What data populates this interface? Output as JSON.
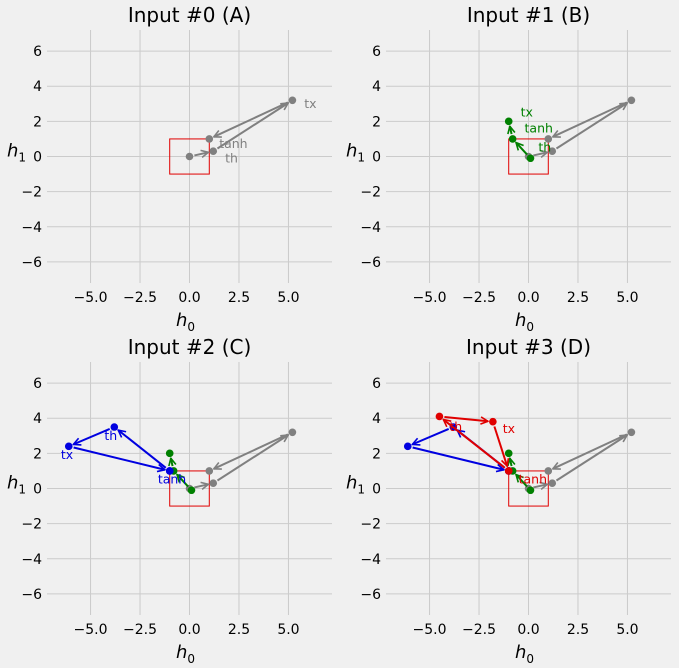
{
  "chart_data": [
    {
      "type": "line",
      "title": "Input #0 (A)",
      "xlabel": "h",
      "xlabel_sub": "0",
      "ylabel": "h",
      "ylabel_sub": "1",
      "xlim": [
        -7.2,
        7.2
      ],
      "ylim": [
        -7.2,
        7.2
      ],
      "xticks": [
        -5.0,
        -2.5,
        0.0,
        2.5,
        5.0
      ],
      "xtick_labels": [
        "−5.0",
        "−2.5",
        "0.0",
        "2.5",
        "5.0"
      ],
      "yticks": [
        -6,
        -4,
        -2,
        0,
        2,
        4,
        6
      ],
      "ytick_labels": [
        "−6",
        "−4",
        "−2",
        "0",
        "2",
        "4",
        "6"
      ],
      "grid": true,
      "box": {
        "x": [
          -1,
          1
        ],
        "y": [
          -1,
          1
        ],
        "color": "#e00000"
      },
      "series": [
        {
          "color": "#808080",
          "points": [
            [
              0,
              0
            ],
            [
              1.2,
              0.3
            ],
            [
              5.2,
              3.2
            ],
            [
              1.0,
              1.0
            ]
          ],
          "labels": [
            {
              "text": "th",
              "at": [
                1.8,
                -0.1
              ]
            },
            {
              "text": "tx",
              "at": [
                5.8,
                3.0
              ]
            },
            {
              "text": "tanh",
              "at": [
                1.5,
                0.7
              ]
            }
          ]
        }
      ]
    },
    {
      "type": "line",
      "title": "Input #1 (B)",
      "xlabel": "h",
      "xlabel_sub": "0",
      "ylabel": "h",
      "ylabel_sub": "1",
      "xlim": [
        -7.2,
        7.2
      ],
      "ylim": [
        -7.2,
        7.2
      ],
      "xticks": [
        -5.0,
        -2.5,
        0.0,
        2.5,
        5.0
      ],
      "xtick_labels": [
        "−5.0",
        "−2.5",
        "0.0",
        "2.5",
        "5.0"
      ],
      "yticks": [
        -6,
        -4,
        -2,
        0,
        2,
        4,
        6
      ],
      "ytick_labels": [
        "−6",
        "−4",
        "−2",
        "0",
        "2",
        "4",
        "6"
      ],
      "grid": true,
      "box": {
        "x": [
          -1,
          1
        ],
        "y": [
          -1,
          1
        ],
        "color": "#e00000"
      },
      "series": [
        {
          "color": "#808080",
          "points": [
            [
              0,
              0
            ],
            [
              1.2,
              0.3
            ],
            [
              5.2,
              3.2
            ],
            [
              1.0,
              1.0
            ]
          ],
          "labels": []
        },
        {
          "color": "#008000",
          "points": [
            [
              0.1,
              -0.1
            ],
            [
              -0.8,
              1.0
            ],
            [
              -1.0,
              2.0
            ]
          ],
          "labels": [
            {
              "text": "th",
              "at": [
                0.5,
                0.5
              ]
            },
            {
              "text": "tanh",
              "at": [
                -0.2,
                1.6
              ]
            },
            {
              "text": "tx",
              "at": [
                -0.4,
                2.5
              ]
            }
          ]
        }
      ]
    },
    {
      "type": "line",
      "title": "Input #2 (C)",
      "xlabel": "h",
      "xlabel_sub": "0",
      "ylabel": "h",
      "ylabel_sub": "1",
      "xlim": [
        -7.2,
        7.2
      ],
      "ylim": [
        -7.2,
        7.2
      ],
      "xticks": [
        -5.0,
        -2.5,
        0.0,
        2.5,
        5.0
      ],
      "xtick_labels": [
        "−5.0",
        "−2.5",
        "0.0",
        "2.5",
        "5.0"
      ],
      "yticks": [
        -6,
        -4,
        -2,
        0,
        2,
        4,
        6
      ],
      "ytick_labels": [
        "−6",
        "−4",
        "−2",
        "0",
        "2",
        "4",
        "6"
      ],
      "grid": true,
      "box": {
        "x": [
          -1,
          1
        ],
        "y": [
          -1,
          1
        ],
        "color": "#e00000"
      },
      "series": [
        {
          "color": "#808080",
          "points": [
            [
              0,
              0
            ],
            [
              1.2,
              0.3
            ],
            [
              5.2,
              3.2
            ],
            [
              1.0,
              1.0
            ]
          ],
          "labels": []
        },
        {
          "color": "#008000",
          "points": [
            [
              0.1,
              -0.1
            ],
            [
              -0.8,
              1.0
            ],
            [
              -1.0,
              2.0
            ]
          ],
          "labels": []
        },
        {
          "color": "#0000e0",
          "points": [
            [
              -1.0,
              1.0
            ],
            [
              -3.8,
              3.5
            ],
            [
              -6.1,
              2.4
            ],
            [
              -1.0,
              1.0
            ]
          ],
          "labels": [
            {
              "text": "th",
              "at": [
                -4.3,
                3.0
              ]
            },
            {
              "text": "tx",
              "at": [
                -6.5,
                1.9
              ]
            },
            {
              "text": "tanh",
              "at": [
                -1.6,
                0.5
              ]
            }
          ]
        }
      ]
    },
    {
      "type": "line",
      "title": "Input #3 (D)",
      "xlabel": "h",
      "xlabel_sub": "0",
      "ylabel": "h",
      "ylabel_sub": "1",
      "xlim": [
        -7.2,
        7.2
      ],
      "ylim": [
        -7.2,
        7.2
      ],
      "xticks": [
        -5.0,
        -2.5,
        0.0,
        2.5,
        5.0
      ],
      "xtick_labels": [
        "−5.0",
        "−2.5",
        "0.0",
        "2.5",
        "5.0"
      ],
      "yticks": [
        -6,
        -4,
        -2,
        0,
        2,
        4,
        6
      ],
      "ytick_labels": [
        "−6",
        "−4",
        "−2",
        "0",
        "2",
        "4",
        "6"
      ],
      "grid": true,
      "box": {
        "x": [
          -1,
          1
        ],
        "y": [
          -1,
          1
        ],
        "color": "#e00000"
      },
      "series": [
        {
          "color": "#808080",
          "points": [
            [
              0,
              0
            ],
            [
              1.2,
              0.3
            ],
            [
              5.2,
              3.2
            ],
            [
              1.0,
              1.0
            ]
          ],
          "labels": []
        },
        {
          "color": "#008000",
          "points": [
            [
              0.1,
              -0.1
            ],
            [
              -0.8,
              1.0
            ],
            [
              -1.0,
              2.0
            ]
          ],
          "labels": []
        },
        {
          "color": "#0000e0",
          "points": [
            [
              -1.0,
              1.0
            ],
            [
              -3.8,
              3.5
            ],
            [
              -6.1,
              2.4
            ],
            [
              -1.0,
              1.0
            ]
          ],
          "labels": []
        },
        {
          "color": "#e00000",
          "points": [
            [
              -1.0,
              1.0
            ],
            [
              -4.5,
              4.1
            ],
            [
              -1.8,
              3.8
            ],
            [
              -1.0,
              1.0
            ]
          ],
          "labels": [
            {
              "text": "th",
              "at": [
                -4.0,
                3.5
              ]
            },
            {
              "text": "tx",
              "at": [
                -1.3,
                3.4
              ]
            },
            {
              "text": "tanh",
              "at": [
                -0.5,
                0.5
              ]
            }
          ]
        }
      ]
    }
  ]
}
